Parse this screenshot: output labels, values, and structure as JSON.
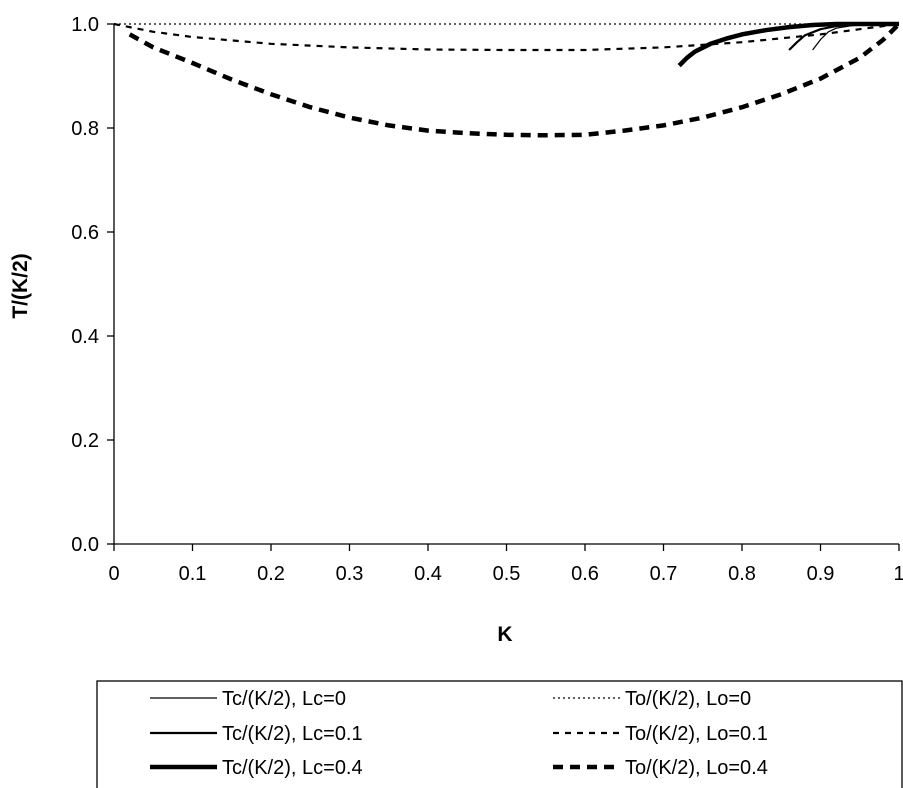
{
  "chart_data": {
    "type": "line",
    "title": "",
    "xlabel": "K",
    "ylabel": "T/(K/2)",
    "xlim": [
      0,
      1
    ],
    "ylim": [
      0,
      1
    ],
    "x_ticks": [
      "0",
      "0.1",
      "0.2",
      "0.3",
      "0.4",
      "0.5",
      "0.6",
      "0.7",
      "0.8",
      "0.9",
      "1"
    ],
    "y_ticks": [
      "0.0",
      "0.2",
      "0.4",
      "0.6",
      "0.8",
      "1.0"
    ],
    "grid": false,
    "legend_position": "bottom",
    "series": [
      {
        "name": "Tc/(K/2), Lc=0",
        "style": "solid",
        "weight": "thin",
        "color": "#000000",
        "points": [
          [
            0.89,
            0.95
          ],
          [
            0.9,
            0.97
          ],
          [
            0.91,
            0.985
          ],
          [
            0.92,
            0.992
          ],
          [
            0.94,
            0.997
          ],
          [
            0.96,
            0.999
          ],
          [
            1.0,
            1.0
          ]
        ]
      },
      {
        "name": "Tc/(K/2), Lc=0.1",
        "style": "solid",
        "weight": "medium",
        "color": "#000000",
        "points": [
          [
            0.86,
            0.95
          ],
          [
            0.87,
            0.965
          ],
          [
            0.88,
            0.978
          ],
          [
            0.9,
            0.99
          ],
          [
            0.92,
            0.996
          ],
          [
            0.95,
            0.999
          ],
          [
            1.0,
            1.0
          ]
        ]
      },
      {
        "name": "Tc/(K/2), Lc=0.4",
        "style": "solid",
        "weight": "thick",
        "color": "#000000",
        "points": [
          [
            0.72,
            0.92
          ],
          [
            0.73,
            0.935
          ],
          [
            0.74,
            0.947
          ],
          [
            0.76,
            0.962
          ],
          [
            0.78,
            0.972
          ],
          [
            0.8,
            0.98
          ],
          [
            0.83,
            0.988
          ],
          [
            0.86,
            0.994
          ],
          [
            0.89,
            0.998
          ],
          [
            0.92,
            1.0
          ],
          [
            1.0,
            1.0
          ]
        ]
      },
      {
        "name": "To/(K/2), Lo=0",
        "style": "dotted",
        "weight": "thin",
        "color": "#000000",
        "points": [
          [
            0.0,
            1.0
          ],
          [
            1.0,
            1.0
          ]
        ]
      },
      {
        "name": "To/(K/2), Lo=0.1",
        "style": "dashed",
        "weight": "medium",
        "color": "#000000",
        "points": [
          [
            0.0,
            1.0
          ],
          [
            0.05,
            0.985
          ],
          [
            0.1,
            0.975
          ],
          [
            0.2,
            0.962
          ],
          [
            0.3,
            0.955
          ],
          [
            0.4,
            0.951
          ],
          [
            0.5,
            0.95
          ],
          [
            0.6,
            0.95
          ],
          [
            0.7,
            0.955
          ],
          [
            0.8,
            0.965
          ],
          [
            0.9,
            0.98
          ],
          [
            0.95,
            0.99
          ],
          [
            1.0,
            1.0
          ]
        ]
      },
      {
        "name": "To/(K/2), Lo=0.4",
        "style": "dashed",
        "weight": "thick",
        "color": "#000000",
        "points": [
          [
            0.02,
            0.98
          ],
          [
            0.05,
            0.955
          ],
          [
            0.1,
            0.925
          ],
          [
            0.15,
            0.893
          ],
          [
            0.2,
            0.865
          ],
          [
            0.25,
            0.84
          ],
          [
            0.3,
            0.82
          ],
          [
            0.35,
            0.805
          ],
          [
            0.4,
            0.795
          ],
          [
            0.45,
            0.79
          ],
          [
            0.5,
            0.787
          ],
          [
            0.55,
            0.786
          ],
          [
            0.6,
            0.787
          ],
          [
            0.65,
            0.795
          ],
          [
            0.7,
            0.805
          ],
          [
            0.75,
            0.82
          ],
          [
            0.8,
            0.84
          ],
          [
            0.85,
            0.865
          ],
          [
            0.9,
            0.895
          ],
          [
            0.95,
            0.935
          ],
          [
            0.98,
            0.97
          ],
          [
            1.0,
            1.0
          ]
        ]
      }
    ]
  }
}
